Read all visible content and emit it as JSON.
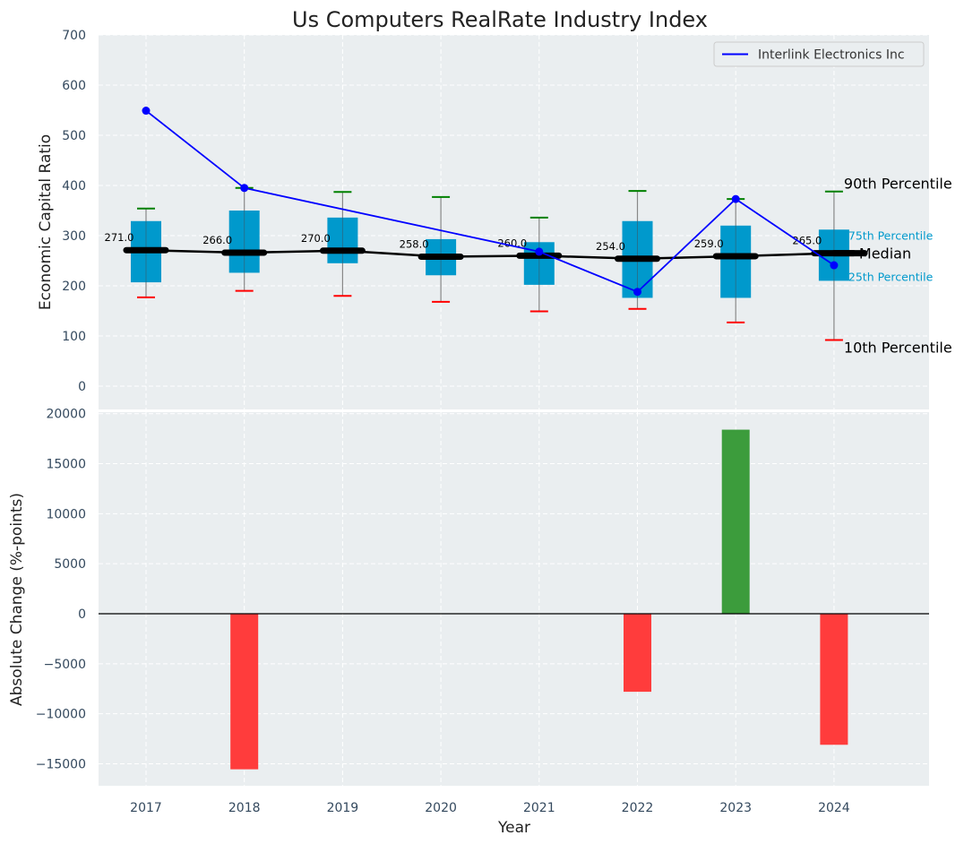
{
  "chart_data": [
    {
      "type": "box",
      "title": "Us Computers RealRate Industry Index",
      "xlabel": "",
      "ylabel": "Economic Capital Ratio",
      "ylim": [
        -35,
        710
      ],
      "yticks": [
        0,
        100,
        200,
        300,
        400,
        500,
        600,
        700
      ],
      "grid": true,
      "categories": [
        "2017",
        "2018",
        "2019",
        "2020",
        "2021",
        "2022",
        "2023",
        "2024"
      ],
      "percentiles": {
        "p10": [
          177,
          190,
          180,
          168,
          149,
          154,
          127,
          92
        ],
        "p25": [
          207,
          226,
          245,
          221,
          202,
          176,
          176,
          210
        ],
        "median": [
          271,
          266,
          270,
          258,
          260,
          254,
          259,
          265
        ],
        "p75": [
          329,
          350,
          336,
          293,
          287,
          329,
          320,
          312
        ],
        "p90": [
          354,
          395,
          387,
          377,
          336,
          389,
          373,
          388
        ]
      },
      "median_labels": [
        "271.0",
        "266.0",
        "270.0",
        "258.0",
        "260.0",
        "254.0",
        "259.0",
        "265.0"
      ],
      "series": [
        {
          "name": "Interlink Electronics Inc",
          "color": "#0000ff",
          "values": [
            549,
            395,
            null,
            null,
            268,
            188,
            373,
            241
          ]
        }
      ],
      "legend": {
        "position": "top-right",
        "entries": [
          "Interlink Electronics Inc"
        ]
      },
      "annotations": {
        "p90": "90th Percentile",
        "p75": "75th Percentile",
        "median": "Median",
        "p25": "25th Percentile",
        "p10": "10th Percentile"
      },
      "colors": {
        "box": "#0099cc",
        "p90_cap": "#008000",
        "p10_cap": "#ff0000",
        "median": "#000000",
        "whisker": "#888888",
        "background": "#eaeef0"
      }
    },
    {
      "type": "bar",
      "xlabel": "Year",
      "ylabel": "Absolute Change (%-points)",
      "ylim": [
        -17200,
        20200
      ],
      "yticks": [
        -15000,
        -10000,
        -5000,
        0,
        5000,
        10000,
        15000,
        20000
      ],
      "ytick_labels": [
        "−15000",
        "−10000",
        "−5000",
        "0",
        "5000",
        "10000",
        "15000",
        "20000"
      ],
      "grid": true,
      "categories": [
        "2017",
        "2018",
        "2019",
        "2020",
        "2021",
        "2022",
        "2023",
        "2024"
      ],
      "values": [
        0,
        -15550,
        0,
        0,
        0,
        -7800,
        18400,
        -13100
      ],
      "colors": {
        "positive": "#3c9c3c",
        "negative": "#ff3c3c",
        "zero_line": "#000000"
      }
    }
  ]
}
